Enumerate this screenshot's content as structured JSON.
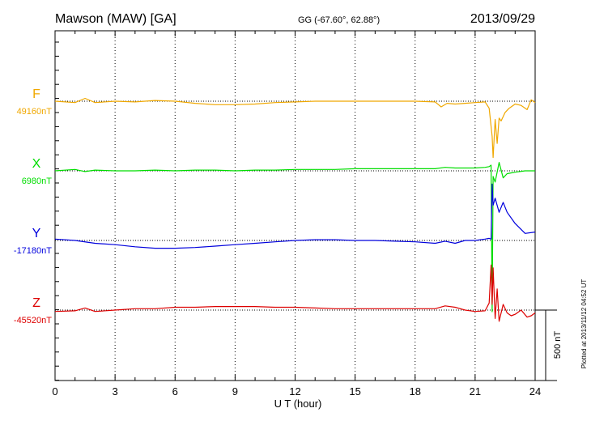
{
  "header": {
    "station": "Mawson (MAW)  [GA]",
    "coords": "GG (-67.60°,  62.88°)",
    "date": "2013/09/29"
  },
  "footer_note": "Plotted at 2013/11/12 04:52 UT",
  "colors": {
    "F": "#f0a800",
    "X": "#00dd00",
    "Y": "#0000dd",
    "Z": "#dd0000",
    "axis": "#000000"
  },
  "chart_data": {
    "type": "line",
    "title": "Mawson (MAW)  [GA]",
    "xlabel": "U T (hour)",
    "ylabel": "",
    "xlim": [
      0,
      24
    ],
    "x_ticks": [
      "0",
      "3",
      "6",
      "9",
      "12",
      "15",
      "18",
      "21",
      "24"
    ],
    "grid": "vertical dotted every 3 hours",
    "scale_bar": "500 nT",
    "series": [
      {
        "name": "F",
        "baseline_label": "49160nT",
        "color": "#f0a800",
        "x": [
          0,
          1,
          1.5,
          2,
          3,
          4,
          5,
          6,
          7,
          8,
          9,
          10,
          11,
          12,
          13,
          14,
          15,
          16,
          17,
          18,
          19,
          19.3,
          19.6,
          20,
          20.5,
          21,
          21.5,
          21.7,
          21.85,
          21.9,
          22.0,
          22.1,
          22.2,
          22.3,
          22.5,
          22.7,
          23,
          23.3,
          23.6,
          23.8,
          24
        ],
        "values": [
          0,
          -10,
          20,
          -10,
          0,
          -5,
          5,
          0,
          -15,
          -25,
          -25,
          -20,
          -10,
          -5,
          0,
          0,
          0,
          0,
          0,
          0,
          -5,
          -40,
          -15,
          -20,
          -15,
          -10,
          -5,
          -50,
          -250,
          -400,
          -130,
          -300,
          -120,
          -140,
          -80,
          -50,
          -20,
          -30,
          -60,
          10,
          -10
        ]
      },
      {
        "name": "X",
        "baseline_label": "6980nT",
        "color": "#00dd00",
        "x": [
          0,
          1,
          1.5,
          2,
          3,
          4,
          5,
          6,
          7,
          8,
          9,
          10,
          11,
          12,
          13,
          14,
          15,
          16,
          17,
          18,
          19,
          19.5,
          20,
          20.5,
          21,
          21.5,
          21.7,
          21.8,
          21.85,
          21.9,
          22.0,
          22.2,
          22.4,
          22.6,
          23,
          23.5,
          24
        ],
        "values": [
          0,
          10,
          -5,
          5,
          0,
          0,
          5,
          0,
          5,
          5,
          0,
          5,
          5,
          10,
          10,
          10,
          15,
          15,
          15,
          15,
          15,
          25,
          20,
          20,
          20,
          25,
          30,
          40,
          -1000,
          -40,
          -80,
          60,
          -50,
          -20,
          -10,
          0,
          0
        ]
      },
      {
        "name": "Y",
        "baseline_label": "-17180nT",
        "color": "#0000dd",
        "x": [
          0,
          1,
          2,
          3,
          4,
          5,
          6,
          7,
          8,
          9,
          10,
          11,
          12,
          13,
          14,
          15,
          16,
          17,
          18,
          19,
          19.5,
          20,
          20.5,
          21,
          21.5,
          21.7,
          21.8,
          21.85,
          21.9,
          22.0,
          22.2,
          22.4,
          22.6,
          23,
          23.5,
          24
        ],
        "values": [
          10,
          0,
          -20,
          -30,
          -45,
          -55,
          -55,
          -50,
          -40,
          -30,
          -20,
          -10,
          0,
          5,
          5,
          0,
          0,
          -5,
          -10,
          -20,
          -5,
          -20,
          0,
          0,
          10,
          15,
          10,
          400,
          250,
          300,
          200,
          270,
          200,
          120,
          50,
          60
        ]
      },
      {
        "name": "Z",
        "baseline_label": "-45520nT",
        "color": "#dd0000",
        "x": [
          0,
          1,
          1.5,
          2,
          3,
          4,
          5,
          6,
          7,
          8,
          9,
          10,
          11,
          12,
          13,
          14,
          15,
          16,
          17,
          18,
          19,
          19.5,
          20,
          20.5,
          21,
          21.5,
          21.7,
          21.8,
          21.85,
          21.9,
          22.0,
          22.1,
          22.2,
          22.4,
          22.6,
          22.8,
          23,
          23.3,
          23.6,
          23.8,
          24
        ],
        "values": [
          -10,
          -5,
          15,
          -10,
          0,
          10,
          10,
          20,
          20,
          25,
          25,
          25,
          20,
          20,
          15,
          10,
          10,
          10,
          10,
          10,
          10,
          30,
          20,
          0,
          -10,
          -5,
          50,
          320,
          40,
          300,
          -60,
          150,
          -80,
          40,
          -20,
          -40,
          -30,
          0,
          -50,
          -40,
          -20
        ]
      }
    ]
  }
}
